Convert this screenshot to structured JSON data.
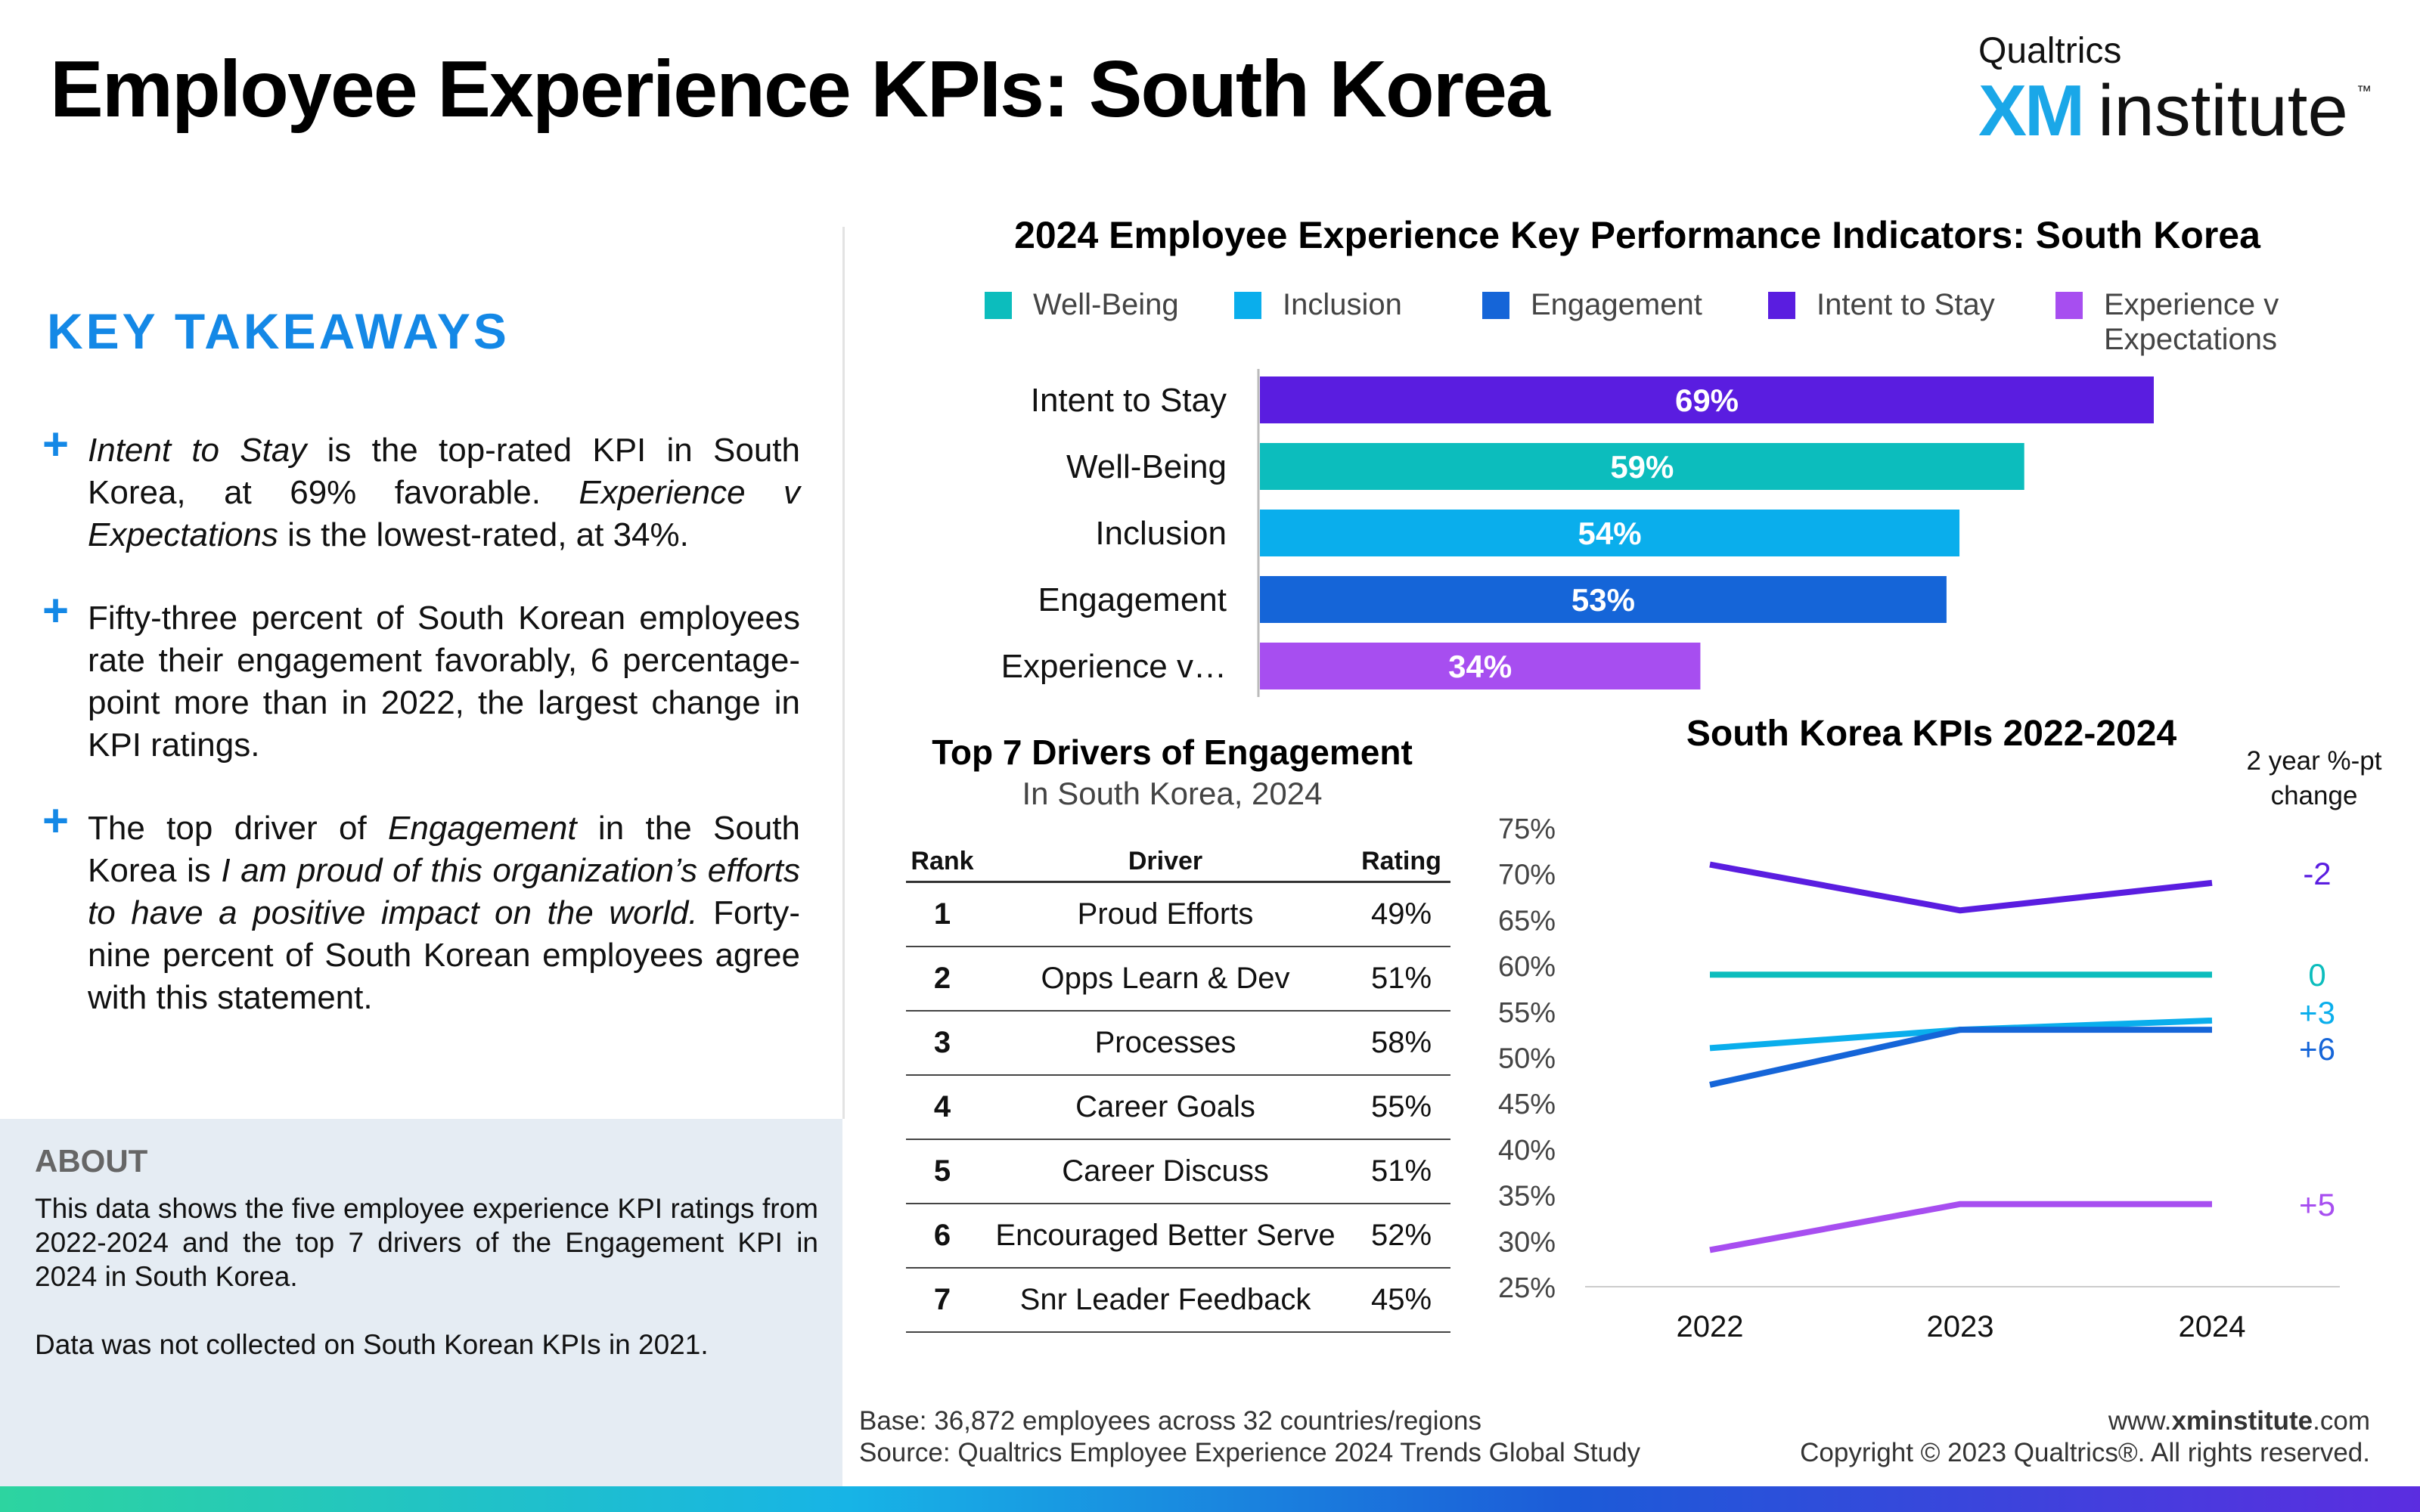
{
  "header": {
    "title": "Employee Experience KPIs: South Korea",
    "logo_small": "Qualtrics",
    "logo_xm": "XM",
    "logo_institute": "institute",
    "logo_tm": "™"
  },
  "takeaways": {
    "title": "KEY TAKEAWAYS",
    "items": [
      "Intent to Stay is the top-rated KPI in South Korea, at 69% favorable. Experience v Expectations is the lowest-rated, at 34%.",
      "Fifty-three percent of South Korean employees rate their engagement favorably, 6 percentage-point more than in 2022, the largest change in KPI ratings.",
      "The top driver of Engagement in the South Korea is I am proud of this organization’s efforts to have a positive impact on the world. Forty-nine percent of South Korean employees agree with this statement."
    ]
  },
  "about": {
    "title": "ABOUT",
    "text1": "This data shows the five employee experience KPI ratings from 2022-2024 and the top 7 drivers of the Engagement KPI in 2024 in South Korea.",
    "text2": "Data was not collected on South Korean KPIs in 2021."
  },
  "colors": {
    "well_being": "#0cbdbd",
    "inclusion": "#0aaeec",
    "engagement": "#1565d8",
    "intent_to_stay": "#5a1de0",
    "experience": "#a74ef0",
    "accent": "#1488e6"
  },
  "chart_data": [
    {
      "type": "bar",
      "title": "2024 Employee Experience Key Performance Indicators: South Korea",
      "legend": [
        "Well-Being",
        "Inclusion",
        "Engagement",
        "Intent to Stay",
        "Experience v Expectations"
      ],
      "legend_placement": "top",
      "categories": [
        "Intent to Stay",
        "Well-Being",
        "Inclusion",
        "Engagement",
        "Experience v…"
      ],
      "values": [
        69,
        59,
        54,
        53,
        34
      ],
      "value_labels": [
        "69%",
        "59%",
        "54%",
        "53%",
        "34%"
      ],
      "xlim": [
        0,
        100
      ]
    },
    {
      "type": "table",
      "title": "Top 7 Drivers of Engagement",
      "subtitle": "In South Korea, 2024",
      "columns": [
        "Rank",
        "Driver",
        "Rating"
      ],
      "rows": [
        [
          "1",
          "Proud Efforts",
          "49%"
        ],
        [
          "2",
          "Opps Learn & Dev",
          "51%"
        ],
        [
          "3",
          "Processes",
          "58%"
        ],
        [
          "4",
          "Career Goals",
          "55%"
        ],
        [
          "5",
          "Career Discuss",
          "51%"
        ],
        [
          "6",
          "Encouraged Better Serve",
          "52%"
        ],
        [
          "7",
          "Snr Leader Feedback",
          "45%"
        ]
      ]
    },
    {
      "type": "line",
      "title": "South Korea KPIs 2022-2024",
      "x": [
        "2022",
        "2023",
        "2024"
      ],
      "ylim": [
        25,
        75
      ],
      "yticks": [
        "75%",
        "70%",
        "65%",
        "60%",
        "55%",
        "50%",
        "45%",
        "40%",
        "35%",
        "30%",
        "25%"
      ],
      "change_header": "2 year %-pt change",
      "series": [
        {
          "name": "Intent to Stay",
          "values": [
            71,
            66,
            69
          ],
          "change": "-2"
        },
        {
          "name": "Well-Being",
          "values": [
            59,
            59,
            59
          ],
          "change": "0"
        },
        {
          "name": "Inclusion",
          "values": [
            51,
            53,
            54
          ],
          "change": "+3"
        },
        {
          "name": "Engagement",
          "values": [
            47,
            53,
            53
          ],
          "change": "+6"
        },
        {
          "name": "Experience v Expectations",
          "values": [
            29,
            34,
            34
          ],
          "change": "+5"
        }
      ]
    }
  ],
  "footer": {
    "base": "Base: 36,872 employees across 32 countries/regions",
    "source": "Source: Qualtrics Employee Experience 2024 Trends Global Study",
    "url_prefix": "www.",
    "url_bold": "xminstitute",
    "url_suffix": ".com",
    "copyright": "Copyright © 2023 Qualtrics®. All rights reserved."
  }
}
